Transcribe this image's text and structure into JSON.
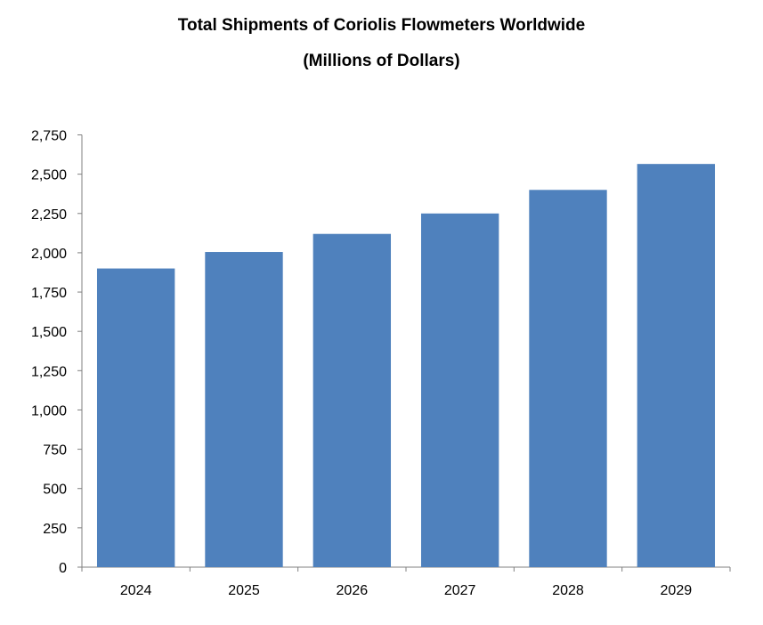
{
  "chart_data": {
    "type": "bar",
    "title": "Total Shipments of Coriolis Flowmeters Worldwide",
    "subtitle": "(Millions of Dollars)",
    "xlabel": "",
    "ylabel": "",
    "categories": [
      "2024",
      "2025",
      "2026",
      "2027",
      "2028",
      "2029"
    ],
    "values": [
      1900,
      2005,
      2120,
      2250,
      2400,
      2565
    ],
    "ylim": [
      0,
      2750
    ],
    "yticks": [
      0,
      250,
      500,
      750,
      1000,
      1250,
      1500,
      1750,
      2000,
      2250,
      2500,
      2750
    ],
    "ytick_labels": [
      "0",
      "250",
      "500",
      "750",
      "1,000",
      "1,250",
      "1,500",
      "1,750",
      "2,000",
      "2,250",
      "2,500",
      "2,750"
    ],
    "grid": false,
    "legend": "none",
    "bar_color": "#4f81bd"
  }
}
